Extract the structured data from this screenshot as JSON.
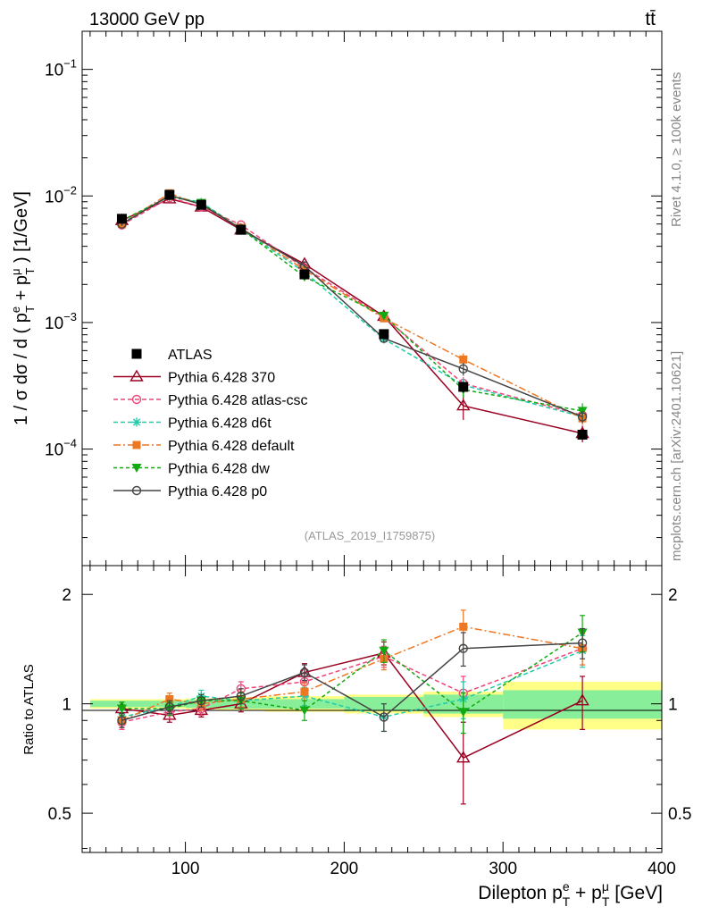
{
  "header": {
    "energy_label": "13000 GeV pp",
    "process_label": "tt̄",
    "side_rivet": "Rivet 4.1.0, ≥ 100k events",
    "side_source": "mcplots.cern.ch [arXiv:2401.10621]",
    "watermark": "(ATLAS_2019_I1759875)"
  },
  "axes": {
    "main_ylabel": "1 / σ  dσ / d ( p",
    "main_ylabel_sup_e": "e",
    "main_ylabel_sub_T1": "T",
    "main_ylabel_plus": " + p",
    "main_ylabel_sup_mu": "μ",
    "main_ylabel_sub_T2": "T",
    "main_ylabel_tail": " ) [1/GeV]",
    "ratio_ylabel": "Ratio to ATLAS",
    "xlabel_main": "Dilepton p",
    "xlabel_sup_e": "e",
    "xlabel_sub_T1": "T",
    "xlabel_plus": " + p",
    "xlabel_sup_mu": "μ",
    "xlabel_sub_T2": "T",
    "xlabel_tail": " [GeV]",
    "x_ticks": [
      "100",
      "200",
      "300",
      "400"
    ],
    "main_y_ticks": [
      {
        "base": "10",
        "exp": "−1"
      },
      {
        "base": "10",
        "exp": "−2"
      },
      {
        "base": "10",
        "exp": "−3"
      },
      {
        "base": "10",
        "exp": "−4"
      }
    ],
    "ratio_y_ticks": [
      "2",
      "1",
      "0.5"
    ]
  },
  "chart_data": {
    "type": "line",
    "x_range": [
      35,
      400
    ],
    "main_ylim": [
      1.2e-05,
      0.2
    ],
    "main_yscale": "log",
    "ratio_ylim": [
      0.39,
      2.4
    ],
    "ratio_yscale": "log",
    "bins": [
      [
        40,
        80
      ],
      [
        80,
        100
      ],
      [
        100,
        120
      ],
      [
        120,
        150
      ],
      [
        150,
        200
      ],
      [
        200,
        250
      ],
      [
        250,
        300
      ],
      [
        300,
        400
      ]
    ],
    "x": [
      60,
      90,
      110,
      135,
      175,
      225,
      275,
      350
    ],
    "atlas": {
      "name": "ATLAS",
      "values": [
        0.0066,
        0.0102,
        0.0085,
        0.0054,
        0.0024,
        0.00081,
        0.00031,
        0.00013
      ],
      "errors": [
        0.0002,
        0.0003,
        0.0003,
        0.0002,
        0.0001,
        3e-05,
        3e-05,
        1.2e-05
      ],
      "band_inner": [
        0.02,
        0.02,
        0.025,
        0.03,
        0.03,
        0.045,
        0.06,
        0.09
      ],
      "band_outer": [
        0.03,
        0.03,
        0.035,
        0.04,
        0.05,
        0.06,
        0.08,
        0.15
      ]
    },
    "series": [
      {
        "name": "Pythia 6.428 370",
        "color": "#990022",
        "marker": "triangle-open",
        "dash": "",
        "values": [
          0.0064,
          0.0095,
          0.0082,
          0.0054,
          0.0029,
          0.00112,
          0.00022,
          0.000133
        ],
        "ratio": [
          0.97,
          0.93,
          0.96,
          1.0,
          1.22,
          1.38,
          0.71,
          1.02
        ],
        "ratio_err": [
          0.04,
          0.04,
          0.04,
          0.05,
          0.07,
          0.1,
          0.18,
          0.17
        ],
        "main_err": [
          0.0002,
          0.0003,
          0.0003,
          0.0002,
          0.0001,
          6e-05,
          5e-05,
          2e-05
        ]
      },
      {
        "name": "Pythia 6.428 atlas-csc",
        "color": "#ee4477",
        "marker": "circle-open",
        "dash": "5,3",
        "values": [
          0.0059,
          0.0097,
          0.0082,
          0.0059,
          0.0027,
          0.0011,
          0.00033,
          0.000185
        ],
        "ratio": [
          0.89,
          0.95,
          0.97,
          1.1,
          1.15,
          1.35,
          1.07,
          1.42
        ],
        "ratio_err": [
          0.04,
          0.04,
          0.04,
          0.05,
          0.06,
          0.09,
          0.12,
          0.14
        ],
        "main_err": [
          0.0002,
          0.0003,
          0.0003,
          0.0002,
          0.0001,
          6e-05,
          4e-05,
          2e-05
        ]
      },
      {
        "name": "Pythia 6.428 d6t",
        "color": "#22ccaa",
        "marker": "star",
        "dash": "5,3",
        "values": [
          0.0061,
          0.01,
          0.0089,
          0.0055,
          0.0025,
          0.00074,
          0.00032,
          0.00018
        ],
        "ratio": [
          0.92,
          0.98,
          1.05,
          1.02,
          1.05,
          0.92,
          1.03,
          1.4
        ],
        "ratio_err": [
          0.04,
          0.04,
          0.04,
          0.05,
          0.06,
          0.08,
          0.12,
          0.14
        ],
        "main_err": [
          0.0002,
          0.0003,
          0.0003,
          0.0002,
          0.0001,
          5e-05,
          4e-05,
          2e-05
        ]
      },
      {
        "name": "Pythia 6.428 default",
        "color": "#ee7722",
        "marker": "square",
        "dash": "8,3,2,3",
        "values": [
          0.006,
          0.0105,
          0.0085,
          0.0056,
          0.0026,
          0.00108,
          0.00051,
          0.000175
        ],
        "ratio": [
          0.9,
          1.03,
          1.0,
          1.03,
          1.08,
          1.33,
          1.63,
          1.42
        ],
        "ratio_err": [
          0.04,
          0.04,
          0.04,
          0.05,
          0.06,
          0.09,
          0.18,
          0.14
        ],
        "main_err": [
          0.0002,
          0.0003,
          0.0003,
          0.0002,
          0.0001,
          6e-05,
          6e-05,
          2e-05
        ]
      },
      {
        "name": "Pythia 6.428 dw",
        "color": "#11aa11",
        "marker": "triangle-down",
        "dash": "4,3",
        "values": [
          0.0064,
          0.0099,
          0.0088,
          0.0055,
          0.0023,
          0.00113,
          0.000295,
          0.0002
        ],
        "ratio": [
          0.97,
          0.97,
          1.02,
          1.02,
          0.96,
          1.4,
          0.95,
          1.57
        ],
        "ratio_err": [
          0.04,
          0.04,
          0.04,
          0.05,
          0.06,
          0.1,
          0.12,
          0.18
        ],
        "main_err": [
          0.0002,
          0.0003,
          0.0003,
          0.0002,
          0.0001,
          6e-05,
          4e-05,
          3e-05
        ]
      },
      {
        "name": "Pythia 6.428 p0",
        "color": "#444444",
        "marker": "circle-open",
        "dash": "",
        "values": [
          0.006,
          0.0101,
          0.0086,
          0.0055,
          0.0028,
          0.00075,
          0.00043,
          0.00018
        ],
        "ratio": [
          0.9,
          0.98,
          1.02,
          1.05,
          1.22,
          0.92,
          1.42,
          1.47
        ],
        "ratio_err": [
          0.04,
          0.04,
          0.04,
          0.05,
          0.06,
          0.08,
          0.15,
          0.14
        ],
        "main_err": [
          0.0002,
          0.0003,
          0.0003,
          0.0002,
          0.0001,
          5e-05,
          5e-05,
          2e-05
        ]
      }
    ]
  }
}
